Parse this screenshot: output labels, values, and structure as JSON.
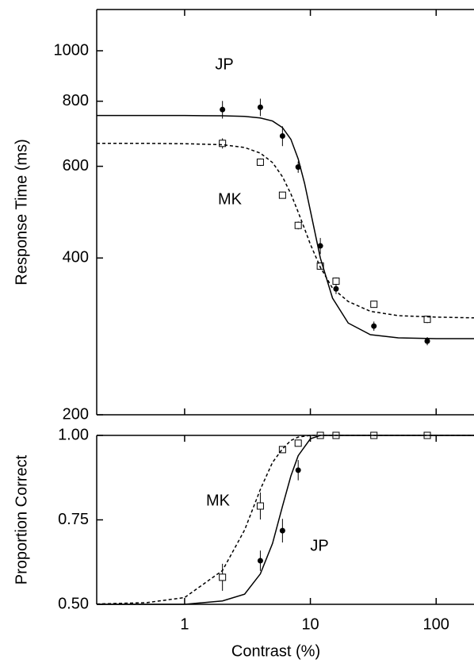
{
  "chart_data": [
    {
      "type": "line",
      "xscale": "log",
      "yscale": "log",
      "ylabel": "Response Time (ms)",
      "xlim": [
        0.2,
        200
      ],
      "ylim": [
        200,
        1200
      ],
      "xticks": [
        1,
        10,
        100
      ],
      "yticks": [
        200,
        400,
        600,
        800,
        1000
      ],
      "annotations": [
        "JP",
        "MK"
      ],
      "color": "#000000",
      "series": [
        {
          "mode": "circle",
          "x": [
            2,
            4,
            6,
            8,
            12,
            16,
            32,
            85
          ],
          "values": [
            771,
            779,
            686,
            598,
            422,
            349,
            296,
            277
          ],
          "errors": [
            30,
            30,
            30,
            15,
            15,
            8,
            6,
            5
          ]
        },
        {
          "mode": "square",
          "x": [
            2,
            4,
            6,
            8,
            12,
            16,
            32,
            85
          ],
          "values": [
            664,
            611,
            528,
            462,
            386,
            361,
            326,
            305
          ],
          "errors": [
            15,
            10,
            8,
            8,
            6,
            6,
            5,
            5
          ]
        },
        {
          "mode": "solid",
          "x": [
            0.2,
            0.5,
            1,
            2,
            3,
            4,
            5,
            6,
            7,
            8,
            9,
            10,
            12,
            15,
            20,
            30,
            50,
            100,
            200
          ],
          "values": [
            751,
            751,
            751,
            750,
            748,
            743,
            733,
            712,
            676,
            620,
            556,
            493,
            400,
            335,
            300,
            285,
            281,
            280,
            280
          ]
        },
        {
          "mode": "dashed",
          "x": [
            0.2,
            0.5,
            1,
            2,
            3,
            4,
            5,
            6,
            7,
            8,
            9,
            10,
            12,
            15,
            20,
            30,
            50,
            100,
            200
          ],
          "values": [
            664,
            664,
            663,
            660,
            652,
            636,
            610,
            573,
            531,
            490,
            455,
            425,
            384,
            350,
            330,
            316,
            310,
            308,
            307
          ]
        }
      ]
    },
    {
      "type": "line",
      "xscale": "log",
      "ylabel": "Proportion Correct",
      "xlabel": "Contrast (%)",
      "xlim": [
        0.2,
        200
      ],
      "ylim": [
        0.5,
        1.0
      ],
      "xticks": [
        1,
        10,
        100
      ],
      "yticks": [
        {
          "value": 0.5,
          "label": "0.50"
        },
        {
          "value": 0.75,
          "label": "0.75"
        },
        {
          "value": 1.0,
          "label": "1.00"
        }
      ],
      "annotations": [
        "MK",
        "JP"
      ],
      "color": "#000000",
      "series": [
        {
          "mode": "circle",
          "x": [
            4,
            6,
            8,
            12,
            16,
            32,
            85
          ],
          "values": [
            0.629,
            0.718,
            0.897,
            1.0,
            1.0,
            1.0,
            1.0
          ],
          "errors": [
            0.03,
            0.035,
            0.03,
            0,
            0,
            0,
            0
          ]
        },
        {
          "mode": "square",
          "x": [
            2,
            4,
            6,
            8,
            12,
            16,
            32,
            85
          ],
          "values": [
            0.58,
            0.791,
            0.958,
            0.977,
            1.0,
            1.0,
            1.0,
            1.0
          ],
          "errors": [
            0.04,
            0.04,
            0.01,
            0.01,
            0,
            0,
            0,
            0
          ]
        },
        {
          "mode": "solid",
          "x": [
            0.2,
            1,
            2,
            3,
            4,
            5,
            6,
            7,
            8,
            10,
            12,
            20,
            200
          ],
          "values": [
            0.5,
            0.5,
            0.51,
            0.53,
            0.59,
            0.68,
            0.79,
            0.88,
            0.94,
            0.99,
            1.0,
            1.0,
            1.0
          ]
        },
        {
          "mode": "dashed",
          "x": [
            0.2,
            0.5,
            1,
            2,
            3,
            4,
            5,
            6,
            7,
            8,
            10,
            200
          ],
          "values": [
            0.501,
            0.505,
            0.52,
            0.6,
            0.72,
            0.84,
            0.92,
            0.96,
            0.985,
            0.995,
            1.0,
            1.0
          ]
        }
      ]
    }
  ]
}
